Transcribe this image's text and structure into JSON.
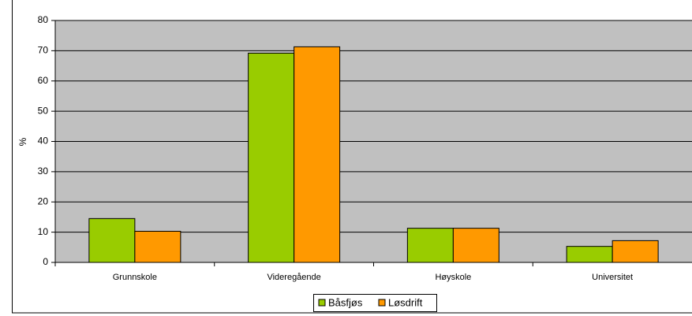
{
  "chart_data": {
    "type": "bar",
    "y_label": "%",
    "categories": [
      "Grunnskole",
      "Videregående",
      "Høyskole",
      "Universitet"
    ],
    "series": [
      {
        "name": "Båsfjøs",
        "color": "#99cc00",
        "values": [
          14.5,
          69.2,
          11.3,
          5.3
        ]
      },
      {
        "name": "Løsdrift",
        "color": "#ff9900",
        "values": [
          10.3,
          71.3,
          11.3,
          7.2
        ]
      }
    ],
    "ylim": [
      0,
      80
    ],
    "yticks": [
      0,
      10,
      20,
      30,
      40,
      50,
      60,
      70,
      80
    ],
    "grid": true,
    "plot_background": "#c0c0c0",
    "legend": "bottom"
  }
}
